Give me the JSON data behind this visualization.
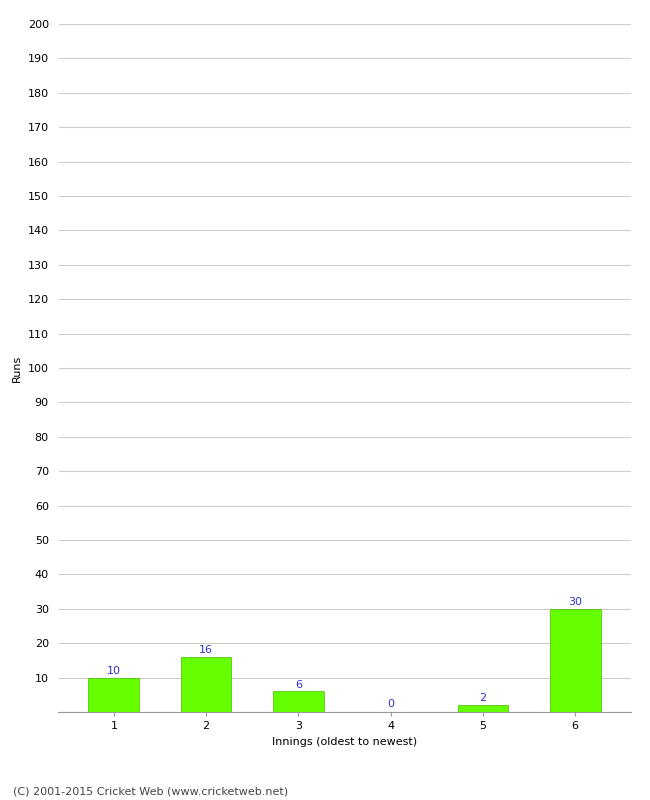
{
  "categories": [
    "1",
    "2",
    "3",
    "4",
    "5",
    "6"
  ],
  "values": [
    10,
    16,
    6,
    0,
    2,
    30
  ],
  "bar_color": "#66ff00",
  "bar_edge_color": "#44bb00",
  "label_color": "#3333cc",
  "xlabel": "Innings (oldest to newest)",
  "ylabel": "Runs",
  "ylim": [
    0,
    200
  ],
  "yticks": [
    0,
    10,
    20,
    30,
    40,
    50,
    60,
    70,
    80,
    90,
    100,
    110,
    120,
    130,
    140,
    150,
    160,
    170,
    180,
    190,
    200
  ],
  "background_color": "#ffffff",
  "grid_color": "#cccccc",
  "footer": "(C) 2001-2015 Cricket Web (www.cricketweb.net)",
  "label_fontsize": 8,
  "axis_fontsize": 8,
  "footer_fontsize": 8,
  "bar_width": 0.55
}
